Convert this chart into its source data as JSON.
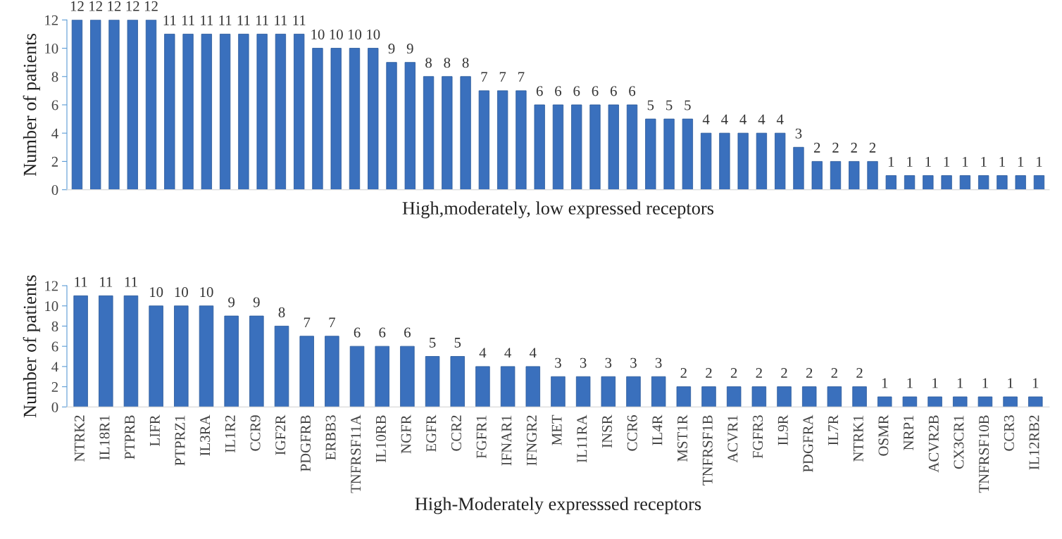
{
  "chart_data": [
    {
      "type": "bar",
      "xlabel": "High,moderately, low expressed receptors",
      "ylabel": "Number of patients",
      "categories": [
        null,
        null,
        null,
        null,
        null,
        null,
        null,
        null,
        null,
        null,
        null,
        null,
        null,
        null,
        null,
        null,
        null,
        null,
        null,
        null,
        null,
        null,
        null,
        null,
        null,
        null,
        null,
        null,
        null,
        null,
        null,
        null,
        null,
        null,
        null,
        null,
        null,
        null,
        null,
        null,
        null,
        null,
        null,
        null,
        null,
        null,
        null,
        null,
        null,
        null,
        null,
        null,
        null
      ],
      "values": [
        12,
        12,
        12,
        12,
        12,
        11,
        11,
        11,
        11,
        11,
        11,
        11,
        11,
        10,
        10,
        10,
        10,
        9,
        9,
        8,
        8,
        8,
        7,
        7,
        7,
        6,
        6,
        6,
        6,
        6,
        6,
        5,
        5,
        5,
        4,
        4,
        4,
        4,
        4,
        3,
        2,
        2,
        2,
        2,
        1,
        1,
        1,
        1,
        1,
        1,
        1,
        1,
        1
      ],
      "color": "#3a70bd",
      "ylim": [
        0,
        12
      ],
      "yticks": [
        0,
        2,
        4,
        6,
        8,
        10,
        12
      ],
      "grid": false,
      "data_labels": true
    },
    {
      "type": "bar",
      "xlabel": "High-Moderately expresssed receptors",
      "ylabel": "Number of patients",
      "categories": [
        "NTRK2",
        "IL18R1",
        "PTPRB",
        "LIFR",
        "PTPRZ1",
        "IL3RA",
        "IL1R2",
        "CCR9",
        "IGF2R",
        "PDGFRB",
        "ERBB3",
        "TNFRSF11A",
        "IL10RB",
        "NGFR",
        "EGFR",
        "CCR2",
        "FGFR1",
        "IFNAR1",
        "IFNGR2",
        "MET",
        "IL11RA",
        "INSR",
        "CCR6",
        "IL4R",
        "MST1R",
        "TNFRSF1B",
        "ACVR1",
        "FGFR3",
        "IL9R",
        "PDGFRA",
        "IL7R",
        "NTRK1",
        "OSMR",
        "NRP1",
        "ACVR2B",
        "CX3CR1",
        "TNFRSF10B",
        "CCR3",
        "IL12RB2"
      ],
      "values": [
        11,
        11,
        11,
        10,
        10,
        10,
        9,
        9,
        8,
        7,
        7,
        6,
        6,
        6,
        5,
        5,
        4,
        4,
        4,
        3,
        3,
        3,
        3,
        3,
        2,
        2,
        2,
        2,
        2,
        2,
        2,
        2,
        1,
        1,
        1,
        1,
        1,
        1,
        1
      ],
      "color": "#3a70bd",
      "ylim": [
        0,
        12
      ],
      "yticks": [
        0,
        2,
        4,
        6,
        8,
        10,
        12
      ],
      "grid": false,
      "data_labels": true
    }
  ]
}
